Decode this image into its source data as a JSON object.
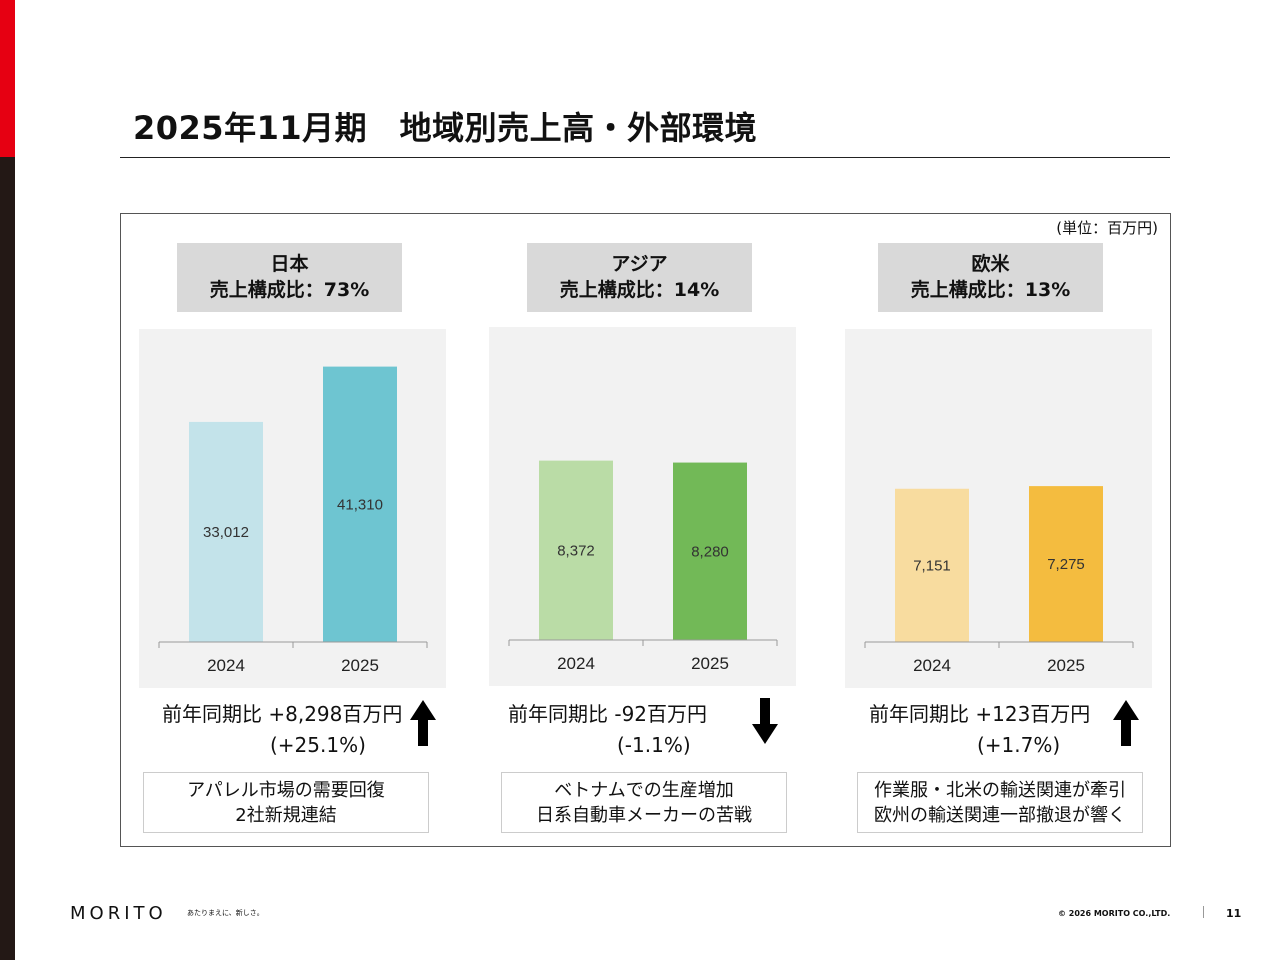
{
  "title": "2025年11月期　地域別売上高・外部環境",
  "unit": "(単位：百万円)",
  "regions": [
    {
      "name": "日本",
      "share": "売上構成比：73%",
      "change": "前年同期比 +8,298百万円",
      "pct": "(+25.1%)",
      "direction": "up",
      "notes": [
        "アパレル市場の需要回復",
        "2社新規連結"
      ]
    },
    {
      "name": "アジア",
      "share": "売上構成比：14%",
      "change": "前年同期比 -92百万円",
      "pct": "(-1.1%)",
      "direction": "down",
      "notes": [
        "ベトナムでの生産増加",
        "日系自動車メーカーの苦戦"
      ]
    },
    {
      "name": "欧米",
      "share": "売上構成比：13%",
      "change": "前年同期比 +123百万円",
      "pct": "(+1.7%)",
      "direction": "up",
      "notes": [
        "作業服・北米の輸送関連が牽引",
        "欧州の輸送関連一部撤退が響く"
      ]
    }
  ],
  "chart_data": [
    {
      "type": "bar",
      "title": "日本",
      "categories": [
        "2024",
        "2025"
      ],
      "values": [
        33012,
        41310
      ],
      "value_labels": [
        "33,012",
        "41,310"
      ],
      "ylim": [
        0,
        45000
      ],
      "colors": [
        "#c3e3ea",
        "#6ec5d1"
      ]
    },
    {
      "type": "bar",
      "title": "アジア",
      "categories": [
        "2024",
        "2025"
      ],
      "values": [
        8372,
        8280
      ],
      "value_labels": [
        "8,372",
        "8,280"
      ],
      "ylim": [
        0,
        14000
      ],
      "colors": [
        "#badca6",
        "#72b957"
      ]
    },
    {
      "type": "bar",
      "title": "欧米",
      "categories": [
        "2024",
        "2025"
      ],
      "values": [
        7151,
        7275
      ],
      "value_labels": [
        "7,151",
        "7,275"
      ],
      "ylim": [
        0,
        14000
      ],
      "colors": [
        "#f8dc9f",
        "#f4bc3f"
      ]
    }
  ],
  "footer": {
    "logo": "MORITO",
    "tagline": "あたりまえに、新しさ。",
    "copyright": "© 2026 MORITO CO.,LTD.",
    "page": "11"
  }
}
